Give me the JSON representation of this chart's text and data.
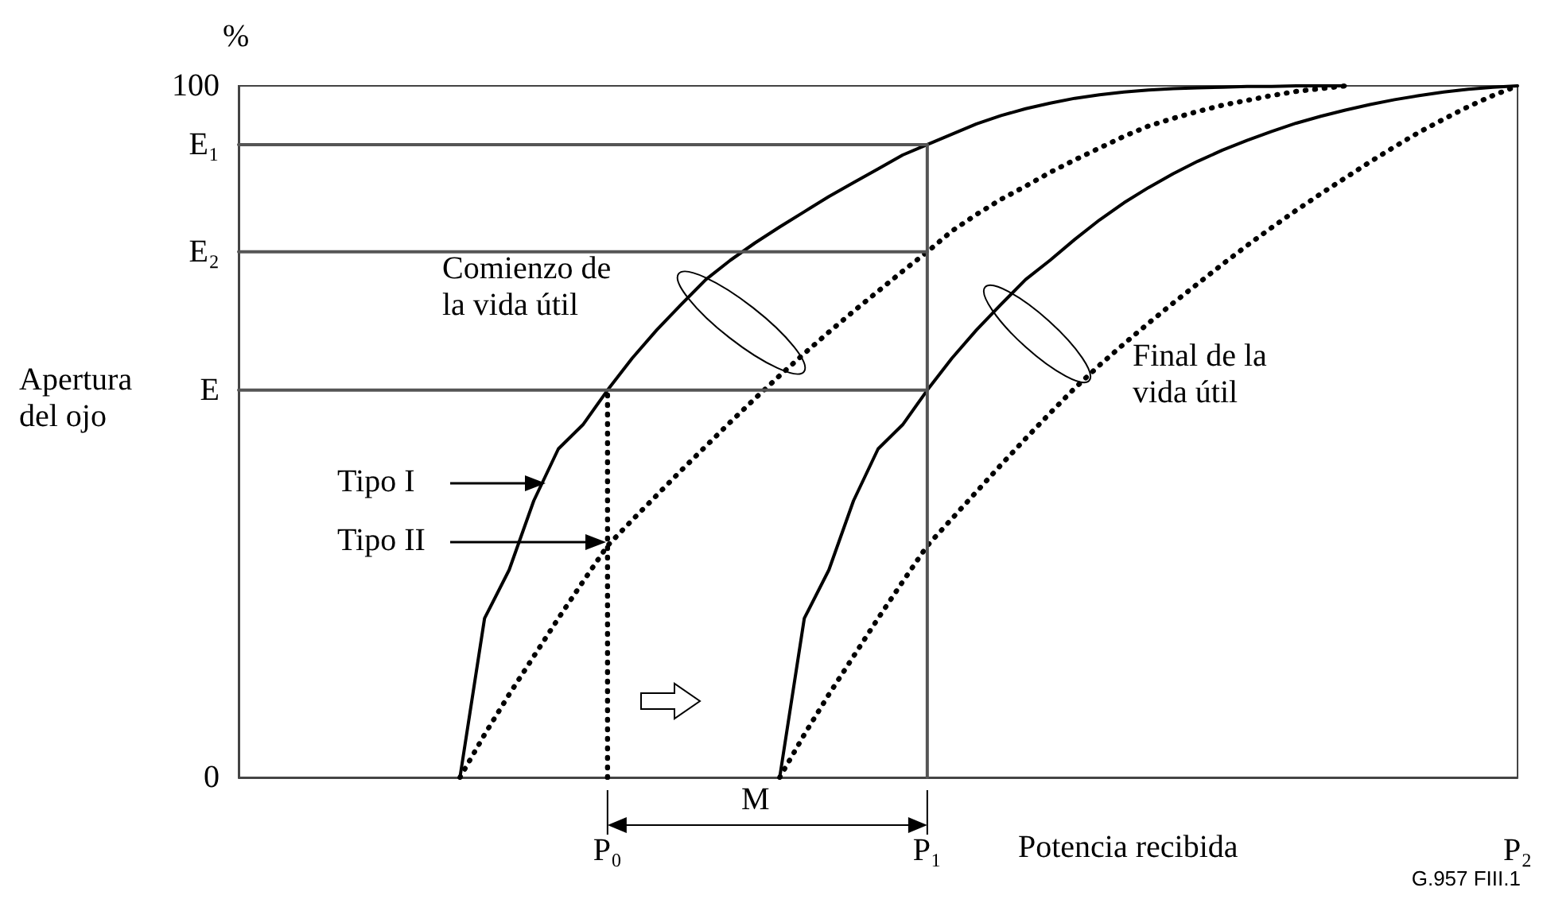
{
  "chart_data": {
    "type": "line",
    "xlabel": "Potencia recibida",
    "ylabel": "Apertura del ojo",
    "annotations": [
      "%",
      "Comienzo de la vida útil",
      "Final de la vida útil",
      "Tipo I",
      "Tipo II",
      "M",
      "G.957  FIII.1"
    ],
    "categories": [
      null,
      null,
      null,
      null,
      null,
      null,
      null,
      null,
      null,
      null,
      null,
      null,
      null,
      null,
      null,
      "P₀",
      null,
      null,
      null,
      null,
      null,
      null,
      null,
      null,
      null,
      null,
      null,
      null,
      "P₁",
      null,
      null,
      null,
      null,
      null,
      null,
      null,
      null,
      null,
      null,
      null,
      null,
      null,
      null,
      null,
      null,
      null,
      null,
      null,
      null,
      null,
      null,
      null,
      "P₂"
    ],
    "series": [
      {
        "color": "#000000",
        "line_style": "solid",
        "values": [
          null,
          null,
          null,
          null,
          null,
          null,
          null,
          null,
          null,
          0,
          23,
          30,
          40,
          47.5,
          51,
          56,
          60.6,
          64.7,
          68.4,
          72,
          74.8,
          77.3,
          79.6,
          81.8,
          84,
          86,
          88,
          90,
          91.5,
          93,
          94.5,
          95.7,
          96.7,
          97.5,
          98.2,
          98.7,
          99.1,
          99.4,
          99.6,
          99.7,
          99.8,
          99.9,
          99.9,
          100,
          100,
          100,
          null,
          null,
          null,
          null,
          null,
          null,
          null
        ]
      },
      {
        "color": "#000000",
        "line_style": "dotted",
        "values": [
          null,
          null,
          null,
          null,
          null,
          null,
          null,
          null,
          null,
          0,
          6.2,
          12,
          17.5,
          23,
          28.3,
          33.5,
          37.2,
          40.8,
          44.4,
          47.9,
          51.4,
          54.8,
          58.1,
          61.3,
          64.4,
          67.4,
          70.3,
          73.2,
          76,
          79,
          81.4,
          83.6,
          85.5,
          87.5,
          89.3,
          91,
          92.7,
          94.2,
          95.3,
          96.3,
          97.2,
          97.9,
          98.6,
          99.2,
          99.6,
          100,
          null,
          null,
          null,
          null,
          null,
          null,
          null
        ]
      },
      {
        "color": "#000000",
        "line_style": "solid",
        "values": [
          null,
          null,
          null,
          null,
          null,
          null,
          null,
          null,
          null,
          null,
          null,
          null,
          null,
          null,
          null,
          null,
          null,
          null,
          null,
          null,
          null,
          null,
          0,
          23,
          30,
          40,
          47.5,
          51,
          56,
          60.6,
          64.7,
          68.4,
          72,
          74.8,
          77.8,
          80.6,
          83.1,
          85.3,
          87.3,
          89.1,
          90.7,
          92.1,
          93.4,
          94.6,
          95.6,
          96.5,
          97.3,
          98,
          98.6,
          99.1,
          99.5,
          99.8,
          100
        ]
      },
      {
        "color": "#000000",
        "line_style": "dotted",
        "values": [
          null,
          null,
          null,
          null,
          null,
          null,
          null,
          null,
          null,
          null,
          null,
          null,
          null,
          null,
          null,
          null,
          null,
          null,
          null,
          null,
          null,
          null,
          0,
          6.2,
          12,
          17.5,
          23,
          28.3,
          33.5,
          37.4,
          41.3,
          45.2,
          49,
          52.7,
          56.3,
          59.6,
          62.7,
          65.7,
          68.6,
          71.4,
          74.2,
          76.9,
          79.5,
          82,
          84.4,
          86.7,
          89,
          91.2,
          93.3,
          95.2,
          97,
          98.6,
          100
        ]
      },
      {
        "color": "#555555",
        "line_style": "solid",
        "values": [
          91.5,
          91.5,
          91.5,
          91.5,
          91.5,
          91.5,
          91.5,
          91.5,
          91.5,
          91.5,
          91.5,
          91.5,
          91.5,
          91.5,
          91.5,
          91.5,
          91.5,
          91.5,
          91.5,
          91.5,
          91.5,
          91.5,
          91.5,
          91.5,
          91.5,
          91.5,
          91.5,
          91.5,
          91.5,
          null,
          null,
          null,
          null,
          null,
          null,
          null,
          null,
          null,
          null,
          null,
          null,
          null,
          null,
          null,
          null,
          null,
          null,
          null,
          null,
          null,
          null,
          null,
          null
        ]
      },
      {
        "color": "#555555",
        "line_style": "solid",
        "values": [
          76,
          76,
          76,
          76,
          76,
          76,
          76,
          76,
          76,
          76,
          76,
          76,
          76,
          76,
          76,
          76,
          76,
          76,
          76,
          76,
          76,
          76,
          76,
          76,
          76,
          76,
          76,
          76,
          76,
          null,
          null,
          null,
          null,
          null,
          null,
          null,
          null,
          null,
          null,
          null,
          null,
          null,
          null,
          null,
          null,
          null,
          null,
          null,
          null,
          null,
          null,
          null,
          null
        ]
      },
      {
        "color": "#555555",
        "line_style": "solid",
        "values": [
          56,
          56,
          56,
          56,
          56,
          56,
          56,
          56,
          56,
          56,
          56,
          56,
          56,
          56,
          56,
          56,
          56,
          56,
          56,
          56,
          56,
          56,
          56,
          56,
          56,
          56,
          56,
          56,
          56,
          null,
          null,
          null,
          null,
          null,
          null,
          null,
          null,
          null,
          null,
          null,
          null,
          null,
          null,
          null,
          null,
          null,
          null,
          null,
          null,
          null,
          null,
          null,
          null
        ]
      },
      {
        "color": "#000000",
        "line_style": "dotted",
        "x": [
          "P₀",
          "P₀"
        ],
        "values": [
          0,
          56
        ]
      },
      {
        "color": "#555555",
        "line_style": "solid",
        "x": [
          "P₁",
          "P₁"
        ],
        "values": [
          0,
          91.5
        ]
      }
    ],
    "ylim": [
      0,
      100
    ],
    "yticks": [
      0,
      {
        "value": 56,
        "label": "E"
      },
      {
        "value": 76,
        "label": "E₂"
      },
      {
        "value": 91.5,
        "label": "E₁"
      },
      100
    ],
    "grid": false,
    "marker": "none"
  }
}
